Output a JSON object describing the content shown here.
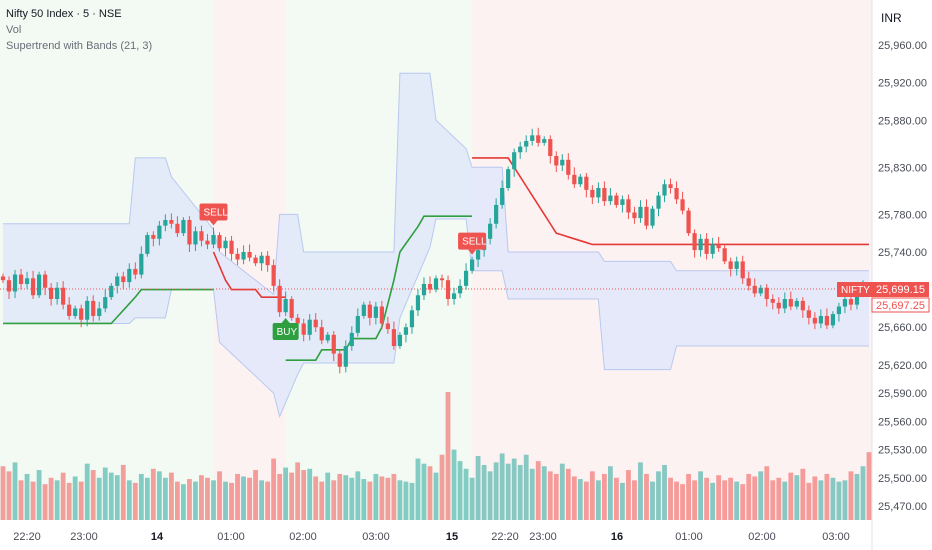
{
  "legend": {
    "title": "Nifty 50 Index · 5 · NSE",
    "vol": "Vol",
    "indicator": "Supertrend with Bands (21, 3)"
  },
  "currency": "INR",
  "price_tag_label": "NIFTY",
  "last_price": "25,699.15",
  "ref_price": "25,697.25",
  "colors": {
    "up": "#26a69a",
    "down": "#ef5350",
    "supertrend_up": "#2e9e3e",
    "supertrend_down": "#e53935",
    "band_fill": "#dde6fb",
    "band_line": "#b9c8f0",
    "bull_bg": "#f3faf3",
    "bear_bg": "#fdf2f2"
  },
  "chart_data": {
    "type": "candlestick",
    "y_ticks": [
      "25,960.00",
      "25,920.00",
      "25,880.00",
      "25,830.00",
      "25,780.00",
      "25,740.00",
      "25,699.15",
      "25,660.00",
      "25,620.00",
      "25,590.00",
      "25,560.00",
      "25,530.00",
      "25,500.00",
      "25,470.00"
    ],
    "x_ticks": [
      {
        "label": "22:20",
        "bold": false
      },
      {
        "label": "23:00",
        "bold": false
      },
      {
        "label": "14",
        "bold": true
      },
      {
        "label": "01:00",
        "bold": false
      },
      {
        "label": "02:00",
        "bold": false
      },
      {
        "label": "03:00",
        "bold": false
      },
      {
        "label": "15",
        "bold": true
      },
      {
        "label": "22:20",
        "bold": false
      },
      {
        "label": "23:00",
        "bold": false
      },
      {
        "label": "16",
        "bold": true
      },
      {
        "label": "01:00",
        "bold": false
      },
      {
        "label": "02:00",
        "bold": false
      },
      {
        "label": "03:00",
        "bold": false
      }
    ],
    "signals": [
      {
        "label": "SELL",
        "type": "sell",
        "index": 35
      },
      {
        "label": "BUY",
        "type": "buy",
        "index": 47
      },
      {
        "label": "SELL",
        "type": "sell",
        "index": 78
      }
    ],
    "closes": [
      25710,
      25698,
      25716,
      25706,
      25712,
      25694,
      25716,
      25702,
      25690,
      25702,
      25684,
      25672,
      25680,
      25668,
      25688,
      25672,
      25680,
      25692,
      25704,
      25714,
      25708,
      25722,
      25716,
      25738,
      25758,
      25754,
      25768,
      25774,
      25770,
      25760,
      25774,
      25748,
      25762,
      25752,
      25748,
      25758,
      25744,
      25752,
      25738,
      25732,
      25740,
      25734,
      25728,
      25736,
      25726,
      25704,
      25676,
      25690,
      25670,
      25664,
      25652,
      25668,
      25660,
      25646,
      25652,
      25632,
      25618,
      25640,
      25654,
      25672,
      25684,
      25670,
      25682,
      25664,
      25658,
      25640,
      25652,
      25660,
      25678,
      25694,
      25706,
      25700,
      25712,
      25710,
      25690,
      25696,
      25704,
      25720,
      25732,
      25742,
      25754,
      25770,
      25790,
      25808,
      25828,
      25846,
      25852,
      25858,
      25864,
      25856,
      25860,
      25842,
      25832,
      25838,
      25822,
      25812,
      25820,
      25806,
      25798,
      25808,
      25794,
      25800,
      25790,
      25796,
      25782,
      25776,
      25788,
      25768,
      25786,
      25800,
      25812,
      25808,
      25796,
      25784,
      25760,
      25742,
      25754,
      25738,
      25748,
      25744,
      25730,
      25722,
      25730,
      25712,
      25704,
      25696,
      25702,
      25690,
      25686,
      25680,
      25690,
      25682,
      25688,
      25678,
      25670,
      25664,
      25672,
      25662,
      25674,
      25682,
      25690,
      25684,
      25696,
      25702,
      25699
    ],
    "volumes": [
      0.42,
      0.38,
      0.45,
      0.31,
      0.36,
      0.3,
      0.39,
      0.28,
      0.33,
      0.31,
      0.37,
      0.29,
      0.34,
      0.3,
      0.44,
      0.39,
      0.33,
      0.41,
      0.37,
      0.35,
      0.43,
      0.31,
      0.29,
      0.36,
      0.33,
      0.4,
      0.38,
      0.33,
      0.37,
      0.3,
      0.28,
      0.32,
      0.3,
      0.35,
      0.33,
      0.31,
      0.38,
      0.3,
      0.29,
      0.36,
      0.34,
      0.33,
      0.39,
      0.31,
      0.3,
      0.48,
      0.36,
      0.41,
      0.37,
      0.45,
      0.39,
      0.4,
      0.34,
      0.3,
      0.37,
      0.31,
      0.36,
      0.35,
      0.33,
      0.38,
      0.32,
      0.3,
      0.36,
      0.34,
      0.33,
      0.36,
      0.31,
      0.3,
      0.29,
      0.48,
      0.44,
      0.42,
      0.37,
      0.51,
      1.0,
      0.55,
      0.46,
      0.4,
      0.33,
      0.5,
      0.43,
      0.38,
      0.45,
      0.52,
      0.44,
      0.48,
      0.43,
      0.51,
      0.4,
      0.46,
      0.42,
      0.38,
      0.36,
      0.44,
      0.4,
      0.34,
      0.32,
      0.3,
      0.38,
      0.31,
      0.36,
      0.42,
      0.33,
      0.29,
      0.39,
      0.31,
      0.45,
      0.36,
      0.3,
      0.38,
      0.43,
      0.33,
      0.3,
      0.28,
      0.36,
      0.31,
      0.38,
      0.33,
      0.29,
      0.35,
      0.31,
      0.33,
      0.3,
      0.28,
      0.36,
      0.34,
      0.38,
      0.42,
      0.31,
      0.33,
      0.3,
      0.37,
      0.35,
      0.4,
      0.29,
      0.34,
      0.31,
      0.36,
      0.33,
      0.3,
      0.31,
      0.38,
      0.36,
      0.42,
      0.53
    ]
  }
}
